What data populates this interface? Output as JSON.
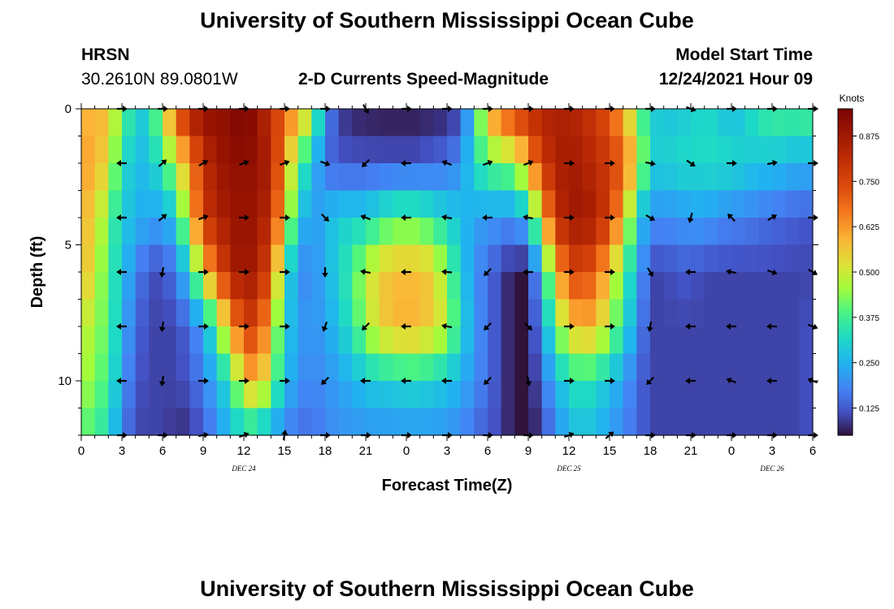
{
  "page": {
    "title": "University of Southern Mississippi Ocean Cube",
    "station_name": "HRSN",
    "coordinates": "30.2610N  89.0801W",
    "chart_heading": "2-D Currents Speed-Magnitude",
    "model_start_label": "Model Start Time",
    "model_start_value": "12/24/2021 Hour 09",
    "footer_title": "University of Southern Mississippi Ocean Cube"
  },
  "chart_data": {
    "type": "heatmap",
    "title": "2-D Currents Speed-Magnitude",
    "xlabel": "Forecast Time(Z)",
    "ylabel": "Depth (ft)",
    "x_unit": "hours since 00Z Dec 24",
    "xlim": [
      0,
      54
    ],
    "ylim": [
      0,
      12
    ],
    "y_inverted": true,
    "x_ticks": [
      {
        "value": 0,
        "label": "0"
      },
      {
        "value": 3,
        "label": "3"
      },
      {
        "value": 6,
        "label": "6"
      },
      {
        "value": 9,
        "label": "9"
      },
      {
        "value": 12,
        "label": "12"
      },
      {
        "value": 15,
        "label": "15"
      },
      {
        "value": 18,
        "label": "18"
      },
      {
        "value": 21,
        "label": "21"
      },
      {
        "value": 24,
        "label": "0"
      },
      {
        "value": 27,
        "label": "3"
      },
      {
        "value": 30,
        "label": "6"
      },
      {
        "value": 33,
        "label": "9"
      },
      {
        "value": 36,
        "label": "12"
      },
      {
        "value": 39,
        "label": "15"
      },
      {
        "value": 42,
        "label": "18"
      },
      {
        "value": 45,
        "label": "21"
      },
      {
        "value": 48,
        "label": "0"
      },
      {
        "value": 51,
        "label": "3"
      },
      {
        "value": 54,
        "label": "6"
      }
    ],
    "date_labels": [
      {
        "value": 12,
        "label": "DEC 24"
      },
      {
        "value": 36,
        "label": "DEC 25"
      },
      {
        "value": 51,
        "label": "DEC 26"
      }
    ],
    "y_ticks": [
      {
        "value": 0,
        "label": "0"
      },
      {
        "value": 5,
        "label": "5"
      },
      {
        "value": 10,
        "label": "10"
      }
    ],
    "colorbar": {
      "title": "Knots",
      "min": 0.05,
      "max": 0.95,
      "ticks": [
        {
          "value": 0.875,
          "label": "0.875"
        },
        {
          "value": 0.75,
          "label": "0.750"
        },
        {
          "value": 0.625,
          "label": "0.625"
        },
        {
          "value": 0.5,
          "label": "0.500"
        },
        {
          "value": 0.375,
          "label": "0.375"
        },
        {
          "value": 0.25,
          "label": "0.250"
        },
        {
          "value": 0.125,
          "label": "0.125"
        }
      ]
    },
    "speed_keyframes": {
      "hours": [
        0,
        1,
        2,
        3,
        4,
        5,
        6,
        7,
        8,
        9,
        10,
        11,
        12,
        13,
        14,
        15,
        16,
        17,
        18,
        19,
        20,
        21,
        22,
        23,
        24,
        25,
        26,
        27,
        28,
        29,
        30,
        31,
        32,
        33,
        34,
        35,
        36,
        37,
        38,
        39,
        40,
        41,
        42,
        43,
        44,
        45,
        46,
        47,
        48,
        49,
        50,
        51,
        52,
        53,
        54
      ],
      "depths": [
        0,
        2,
        4,
        6,
        8,
        10,
        12
      ],
      "values": [
        [
          0.55,
          0.62,
          0.55,
          0.42,
          0.3,
          0.3,
          0.5,
          0.72,
          0.86,
          0.92,
          0.9,
          0.93,
          0.95,
          0.9,
          0.8,
          0.7,
          0.62,
          0.5,
          0.2,
          0.1,
          0.06,
          0.06,
          0.05,
          0.05,
          0.05,
          0.05,
          0.06,
          0.06,
          0.1,
          0.3,
          0.6,
          0.72,
          0.78,
          0.82,
          0.85,
          0.85,
          0.85,
          0.82,
          0.78,
          0.7,
          0.6,
          0.42,
          0.3,
          0.28,
          0.28,
          0.3,
          0.32,
          0.3,
          0.25,
          0.3,
          0.35,
          0.38,
          0.38,
          0.38,
          0.4
        ],
        [
          0.6,
          0.62,
          0.5,
          0.35,
          0.25,
          0.28,
          0.35,
          0.5,
          0.62,
          0.8,
          0.88,
          0.9,
          0.92,
          0.9,
          0.85,
          0.62,
          0.4,
          0.28,
          0.15,
          0.12,
          0.12,
          0.12,
          0.12,
          0.12,
          0.12,
          0.12,
          0.14,
          0.15,
          0.2,
          0.32,
          0.4,
          0.42,
          0.45,
          0.6,
          0.78,
          0.85,
          0.88,
          0.85,
          0.82,
          0.78,
          0.7,
          0.55,
          0.3,
          0.3,
          0.32,
          0.32,
          0.32,
          0.33,
          0.32,
          0.3,
          0.28,
          0.28,
          0.26,
          0.25,
          0.25
        ],
        [
          0.58,
          0.55,
          0.4,
          0.3,
          0.25,
          0.24,
          0.22,
          0.3,
          0.55,
          0.78,
          0.85,
          0.88,
          0.9,
          0.88,
          0.82,
          0.55,
          0.3,
          0.2,
          0.25,
          0.3,
          0.3,
          0.3,
          0.35,
          0.38,
          0.4,
          0.38,
          0.35,
          0.3,
          0.28,
          0.22,
          0.22,
          0.2,
          0.2,
          0.28,
          0.55,
          0.8,
          0.88,
          0.88,
          0.86,
          0.75,
          0.6,
          0.3,
          0.2,
          0.2,
          0.2,
          0.22,
          0.22,
          0.2,
          0.18,
          0.18,
          0.16,
          0.15,
          0.14,
          0.13,
          0.12
        ],
        [
          0.6,
          0.5,
          0.38,
          0.28,
          0.18,
          0.12,
          0.1,
          0.18,
          0.3,
          0.55,
          0.7,
          0.85,
          0.9,
          0.85,
          0.72,
          0.35,
          0.2,
          0.18,
          0.25,
          0.3,
          0.38,
          0.48,
          0.55,
          0.58,
          0.58,
          0.58,
          0.55,
          0.42,
          0.3,
          0.2,
          0.15,
          0.1,
          0.05,
          0.05,
          0.28,
          0.55,
          0.75,
          0.75,
          0.7,
          0.55,
          0.4,
          0.25,
          0.1,
          0.1,
          0.12,
          0.12,
          0.1,
          0.1,
          0.1,
          0.1,
          0.1,
          0.1,
          0.1,
          0.1,
          0.1
        ],
        [
          0.5,
          0.45,
          0.4,
          0.25,
          0.15,
          0.1,
          0.1,
          0.1,
          0.15,
          0.22,
          0.4,
          0.6,
          0.75,
          0.78,
          0.55,
          0.3,
          0.22,
          0.2,
          0.22,
          0.28,
          0.35,
          0.45,
          0.55,
          0.58,
          0.6,
          0.58,
          0.55,
          0.48,
          0.32,
          0.22,
          0.15,
          0.1,
          0.05,
          0.05,
          0.2,
          0.4,
          0.55,
          0.6,
          0.58,
          0.45,
          0.35,
          0.2,
          0.1,
          0.1,
          0.1,
          0.1,
          0.1,
          0.1,
          0.1,
          0.1,
          0.1,
          0.1,
          0.1,
          0.1,
          0.12
        ],
        [
          0.48,
          0.42,
          0.38,
          0.22,
          0.12,
          0.1,
          0.1,
          0.1,
          0.12,
          0.18,
          0.25,
          0.35,
          0.55,
          0.62,
          0.45,
          0.28,
          0.2,
          0.18,
          0.2,
          0.22,
          0.25,
          0.28,
          0.3,
          0.3,
          0.32,
          0.32,
          0.3,
          0.28,
          0.25,
          0.2,
          0.15,
          0.1,
          0.05,
          0.04,
          0.15,
          0.25,
          0.32,
          0.35,
          0.32,
          0.28,
          0.22,
          0.15,
          0.1,
          0.1,
          0.1,
          0.1,
          0.1,
          0.1,
          0.1,
          0.1,
          0.1,
          0.1,
          0.1,
          0.1,
          0.12
        ],
        [
          0.4,
          0.38,
          0.32,
          0.18,
          0.1,
          0.1,
          0.1,
          0.08,
          0.08,
          0.12,
          0.2,
          0.25,
          0.3,
          0.28,
          0.22,
          0.18,
          0.15,
          0.15,
          0.18,
          0.2,
          0.2,
          0.2,
          0.2,
          0.2,
          0.2,
          0.2,
          0.2,
          0.2,
          0.18,
          0.15,
          0.12,
          0.1,
          0.05,
          0.04,
          0.1,
          0.18,
          0.25,
          0.28,
          0.25,
          0.22,
          0.18,
          0.15,
          0.1,
          0.1,
          0.1,
          0.1,
          0.1,
          0.1,
          0.1,
          0.1,
          0.1,
          0.1,
          0.1,
          0.1,
          0.12
        ]
      ]
    },
    "arrows": {
      "hours": [
        3,
        6,
        9,
        12,
        15,
        18,
        21,
        24,
        27,
        30,
        33,
        36,
        39,
        42,
        45,
        48,
        51,
        54
      ],
      "depths": [
        0,
        2,
        4,
        6,
        8,
        10,
        12
      ],
      "directions_deg": [
        [
          0,
          0,
          0,
          0,
          0,
          0,
          60,
          0,
          0,
          0,
          0,
          0,
          0,
          0,
          20,
          0,
          0,
          0
        ],
        [
          180,
          -40,
          -30,
          -20,
          -20,
          20,
          135,
          180,
          200,
          -20,
          -20,
          0,
          0,
          10,
          35,
          0,
          -10,
          0
        ],
        [
          180,
          -40,
          -20,
          0,
          0,
          45,
          200,
          180,
          190,
          180,
          190,
          0,
          0,
          30,
          105,
          225,
          -30,
          0
        ],
        [
          180,
          100,
          0,
          0,
          0,
          90,
          190,
          180,
          185,
          135,
          180,
          0,
          0,
          60,
          180,
          190,
          20,
          30
        ],
        [
          180,
          100,
          0,
          0,
          0,
          110,
          135,
          180,
          190,
          135,
          45,
          0,
          0,
          100,
          180,
          180,
          180,
          20
        ],
        [
          180,
          100,
          0,
          0,
          0,
          135,
          180,
          180,
          180,
          135,
          80,
          0,
          0,
          135,
          180,
          200,
          180,
          200
        ],
        [
          0,
          0,
          -10,
          -20,
          -80,
          0,
          0,
          0,
          0,
          0,
          0,
          -20,
          -40,
          0,
          0,
          0,
          0,
          0
        ]
      ]
    }
  }
}
